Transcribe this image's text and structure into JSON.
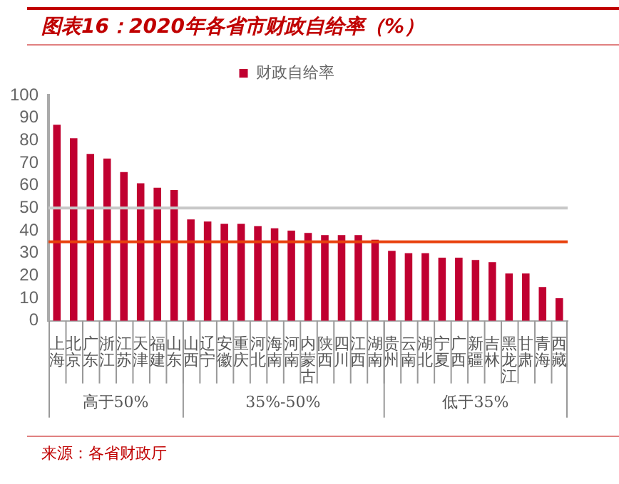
{
  "chart_data": {
    "type": "bar",
    "title": "图表16：2020年各省市财政自给率（%）",
    "categories": [
      "上海",
      "北京",
      "广东",
      "浙江",
      "江苏",
      "天津",
      "福建",
      "山东",
      "山西",
      "辽宁",
      "安徽",
      "重庆",
      "河北",
      "海南",
      "河南",
      "内蒙古",
      "陕西",
      "四川",
      "江西",
      "湖南",
      "贵州",
      "云南",
      "湖北",
      "宁夏",
      "广西",
      "新疆",
      "吉林",
      "黑龙江",
      "甘肃",
      "青海",
      "西藏"
    ],
    "series": [
      {
        "name": "财政自给率",
        "color": "#c00030",
        "values": [
          87,
          81,
          74,
          72,
          66,
          61,
          59,
          58,
          45,
          44,
          43,
          43,
          42,
          41,
          40,
          39,
          38,
          38,
          38,
          36,
          31,
          30,
          30,
          28,
          28,
          27,
          26,
          21,
          21,
          15,
          10
        ]
      }
    ],
    "ylim": [
      0,
      100
    ],
    "yticks": [
      0,
      10,
      20,
      30,
      40,
      50,
      60,
      70,
      80,
      90,
      100
    ],
    "grid": false,
    "legend": "top",
    "ref_lines": [
      {
        "axis": "y",
        "value": 50,
        "color": "#c8c8c8"
      },
      {
        "axis": "y",
        "value": 35,
        "color": "#e8400c"
      }
    ],
    "annotations": [
      "高于50%",
      "35%-50%",
      "低于35%",
      "来源：各省财政厅"
    ]
  }
}
